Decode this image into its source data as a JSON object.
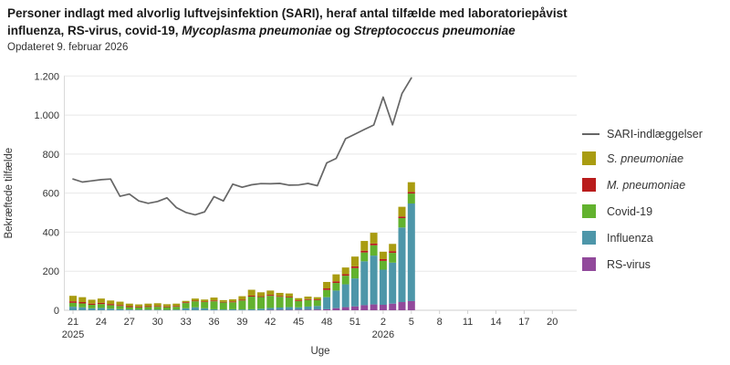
{
  "header": {
    "title_lines": [
      {
        "parts": [
          {
            "t": "Personer indlagt med alvorlig luftvejsinfektion (SARI), heraf antal tilfælde med laboratoriepåvist",
            "i": false
          }
        ]
      },
      {
        "parts": [
          {
            "t": "influenza, RS-virus, covid-19, ",
            "i": false
          },
          {
            "t": "Mycoplasma pneumoniae",
            "i": true
          },
          {
            "t": " og ",
            "i": false
          },
          {
            "t": "Streptococcus pneumoniae",
            "i": true
          }
        ]
      }
    ],
    "subtitle": "Opdateret 9. februar 2026"
  },
  "legend": {
    "items": [
      {
        "label": "SARI-indlæggelser",
        "swatch": "line",
        "color": "#666666",
        "italic": false
      },
      {
        "label": "S. pneumoniae",
        "swatch": "box",
        "color": "#a99c11",
        "italic": true
      },
      {
        "label": "M. pneumoniae",
        "swatch": "box",
        "color": "#b91c1c",
        "italic": true
      },
      {
        "label": "Covid-19",
        "swatch": "box",
        "color": "#62b22e",
        "italic": false
      },
      {
        "label": "Influenza",
        "swatch": "box",
        "color": "#4d96a9",
        "italic": false
      },
      {
        "label": "RS-virus",
        "swatch": "box",
        "color": "#91499b",
        "italic": false
      }
    ]
  },
  "chart_data": {
    "type": "stacked-bar-with-line",
    "title": "Personer indlagt med alvorlig luftvejsinfektion (SARI), heraf antal tilfælde med laboratoriepåvist influenza, RS-virus, covid-19, Mycoplasma pneumoniae og Streptococcus pneumoniae",
    "subtitle": "Opdateret 9. februar 2026",
    "xlabel": "Uge",
    "ylabel": "Bekræftede tilfælde",
    "ylim": [
      0,
      1200
    ],
    "grid": "horizontal",
    "legend_position": "right",
    "categories": [
      "21",
      "22",
      "23",
      "24",
      "25",
      "26",
      "27",
      "28",
      "29",
      "30",
      "31",
      "32",
      "33",
      "34",
      "35",
      "36",
      "37",
      "38",
      "39",
      "40",
      "41",
      "42",
      "43",
      "44",
      "45",
      "46",
      "47",
      "48",
      "49",
      "50",
      "51",
      "52",
      "1",
      "2",
      "3",
      "4",
      "5"
    ],
    "series": [
      {
        "name": "RS-virus",
        "color": "#91499b",
        "values": [
          0,
          0,
          0,
          0,
          0,
          0,
          0,
          0,
          0,
          0,
          0,
          0,
          0,
          0,
          0,
          0,
          0,
          0,
          0,
          0,
          0,
          2,
          2,
          2,
          3,
          3,
          4,
          5,
          11,
          16,
          20,
          26,
          30,
          28,
          34,
          42,
          47
        ]
      },
      {
        "name": "Influenza",
        "color": "#4d96a9",
        "values": [
          18,
          15,
          10,
          12,
          8,
          6,
          4,
          3,
          3,
          3,
          2,
          3,
          10,
          15,
          10,
          5,
          4,
          5,
          4,
          5,
          8,
          10,
          12,
          14,
          12,
          16,
          18,
          62,
          90,
          117,
          143,
          225,
          250,
          180,
          210,
          382,
          500
        ]
      },
      {
        "name": "Covid-19",
        "color": "#62b22e",
        "values": [
          20,
          20,
          18,
          20,
          18,
          16,
          12,
          12,
          14,
          15,
          14,
          15,
          27,
          31,
          32,
          41,
          36,
          36,
          46,
          65,
          60,
          62,
          55,
          50,
          32,
          34,
          30,
          37,
          39,
          44,
          53,
          45,
          53,
          45,
          50,
          48,
          51
        ]
      },
      {
        "name": "M. pneumoniae",
        "color": "#b91c1c",
        "values": [
          8,
          7,
          6,
          6,
          6,
          5,
          5,
          4,
          4,
          4,
          4,
          4,
          4,
          3,
          3,
          4,
          3,
          4,
          4,
          5,
          4,
          5,
          4,
          4,
          4,
          4,
          4,
          8,
          8,
          8,
          9,
          9,
          9,
          9,
          9,
          8,
          8
        ]
      },
      {
        "name": "S. pneumoniae",
        "color": "#a99c11",
        "values": [
          28,
          25,
          20,
          22,
          18,
          17,
          13,
          11,
          13,
          14,
          11,
          12,
          7,
          11,
          10,
          15,
          9,
          11,
          18,
          30,
          20,
          22,
          16,
          16,
          11,
          13,
          11,
          33,
          36,
          34,
          50,
          50,
          55,
          38,
          37,
          50,
          50
        ]
      }
    ],
    "line_series": {
      "name": "SARI-indlæggelser",
      "color": "#666666",
      "values": [
        672,
        657,
        663,
        669,
        672,
        584,
        595,
        560,
        548,
        557,
        576,
        526,
        501,
        489,
        504,
        582,
        560,
        646,
        630,
        643,
        649,
        648,
        650,
        641,
        642,
        650,
        638,
        755,
        778,
        879,
        902,
        926,
        949,
        1092,
        950,
        1110,
        1190
      ]
    },
    "y_tick_labels": [
      "0",
      "200",
      "400",
      "600",
      "800",
      "1.000",
      "1.200"
    ],
    "x_ticks": [
      {
        "label": "21",
        "index": 0
      },
      {
        "label": "24",
        "index": 3
      },
      {
        "label": "27",
        "index": 6
      },
      {
        "label": "30",
        "index": 9
      },
      {
        "label": "33",
        "index": 12
      },
      {
        "label": "36",
        "index": 15
      },
      {
        "label": "39",
        "index": 18
      },
      {
        "label": "42",
        "index": 21
      },
      {
        "label": "45",
        "index": 24
      },
      {
        "label": "48",
        "index": 27
      },
      {
        "label": "51",
        "index": 30
      },
      {
        "label": "2",
        "index": 33
      },
      {
        "label": "5",
        "index": 36
      },
      {
        "label": "8",
        "index": 39
      },
      {
        "label": "11",
        "index": 42
      },
      {
        "label": "14",
        "index": 45
      },
      {
        "label": "17",
        "index": 48
      },
      {
        "label": "20",
        "index": 51
      }
    ],
    "year_labels": [
      {
        "label": "2025",
        "index": 0
      },
      {
        "label": "2026",
        "index": 33
      }
    ]
  }
}
